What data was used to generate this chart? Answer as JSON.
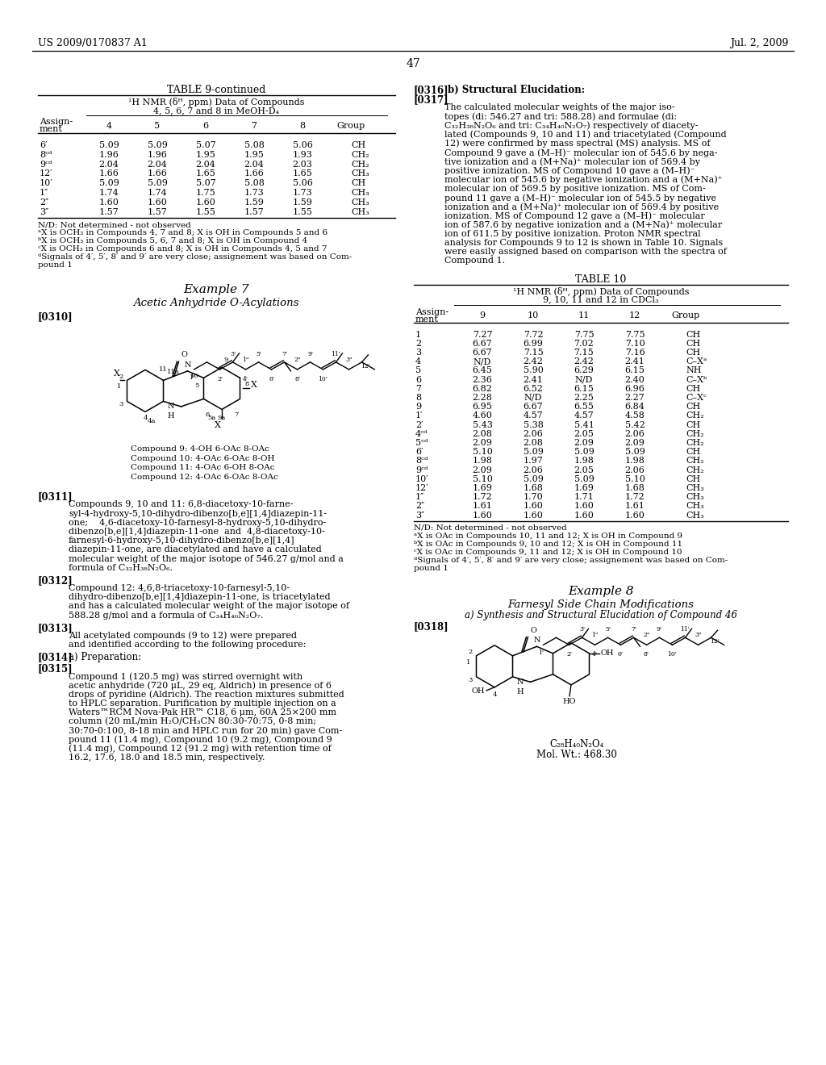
{
  "background_color": "#ffffff",
  "header_left": "US 2009/0170837 A1",
  "header_right": "Jul. 2, 2009",
  "page_number": "47",
  "table9_title": "TABLE 9-continued",
  "table9_subtitle1": "¹H NMR (δᴴ, ppm) Data of Compounds",
  "table9_subtitle2": "4, 5, 6, 7 and 8 in MeOH-D₄",
  "table9_col_headers": [
    "Assign-\nment",
    "4",
    "5",
    "6",
    "7",
    "8",
    "Group"
  ],
  "table9_rows": [
    [
      "6′",
      "5.09",
      "5.09",
      "5.07",
      "5.08",
      "5.06",
      "CH"
    ],
    [
      "8ᶜᵈ",
      "1.96",
      "1.96",
      "1.95",
      "1.95",
      "1.93",
      "CH₂"
    ],
    [
      "9ᶜᵈ",
      "2.04",
      "2.04",
      "2.04",
      "2.04",
      "2.03",
      "CH₂"
    ],
    [
      "12′",
      "1.66",
      "1.66",
      "1.65",
      "1.66",
      "1.65",
      "CH₃"
    ],
    [
      "10′",
      "5.09",
      "5.09",
      "5.07",
      "5.08",
      "5.06",
      "CH"
    ],
    [
      "1″",
      "1.74",
      "1.74",
      "1.75",
      "1.73",
      "1.73",
      "CH₃"
    ],
    [
      "2″",
      "1.60",
      "1.60",
      "1.60",
      "1.59",
      "1.59",
      "CH₃"
    ],
    [
      "3″",
      "1.57",
      "1.57",
      "1.55",
      "1.57",
      "1.55",
      "CH₃"
    ]
  ],
  "table9_footnotes": [
    "N/D: Not determined - not observed",
    "ᵃX is OCH₃ in Compounds 4, 7 and 8; X is OH in Compounds 5 and 6",
    "ᵇX is OCH₃ in Compounds 5, 6, 7 and 8; X is OH in Compound 4",
    "ᶜX is OCH₃ in Compounds 6 and 8; X is OH in Compounds 4, 5 and 7",
    "ᵈSignals of 4′, 5′, 8′ and 9′ are very close; assignement was based on Com-",
    "pound 1"
  ],
  "example7_title": "Example 7",
  "example7_subtitle": "Acetic Anhydride O-Acylations",
  "para0310": "[0310]",
  "compound_labels": [
    "Compound 9: 4-OH 6-OAc 8-OAc",
    "Compound 10: 4-OAc 6-OAc 8-OH",
    "Compound 11: 4-OAc 6-OH 8-OAc",
    "Compound 12: 4-OAc 6-OAc 8-OAc"
  ],
  "para0311_tag": "[0311]",
  "para0311_lines": [
    "Compounds 9, 10 and 11: 6,8-diacetoxy-10-farne-",
    "syl-4-hydroxy-5,10-dihydro-dibenzo[b,e][1,4]diazepin-11-",
    "one;    4,6-diacetoxy-10-farnesyl-8-hydroxy-5,10-dihydro-",
    "dibenzo[b,e][1,4]diazepin-11-one  and  4,8-diacetoxy-10-",
    "farnesyl-6-hydroxy-5,10-dihydro-dibenzo[b,e][1,4]",
    "diazepin-11-one, are diacetylated and have a calculated",
    "molecular weight of the major isotope of 546.27 g/mol and a",
    "formula of C₃₂H₃₈N₂O₆."
  ],
  "para0312_tag": "[0312]",
  "para0312_lines": [
    "Compound 12: 4,6,8-triacetoxy-10-farnesyl-5,10-",
    "dihydro-dibenzo[b,e][1,4]diazepin-11-one, is triacetylated",
    "and has a calculated molecular weight of the major isotope of",
    "588.28 g/mol and a formula of C₃₄H₄₀N₂O₇."
  ],
  "para0313_tag": "[0313]",
  "para0313_lines": [
    "All acetylated compounds (9 to 12) were prepared",
    "and identified according to the following procedure:"
  ],
  "para0314_tag": "[0314]",
  "para0314_text": "a) Preparation:",
  "para0315_tag": "[0315]",
  "para0315_lines": [
    "Compound 1 (120.5 mg) was stirred overnight with",
    "acetic anhydride (720 μL, 29 eq, Aldrich) in presence of 6",
    "drops of pyridine (Aldrich). The reaction mixtures submitted",
    "to HPLC separation. Purification by multiple injection on a",
    "Waters™RCM Nova-Pak HR™ C18, 6 μm, 60A 25×200 mm",
    "column (20 mL/min H₂O/CH₃CN 80:30-70:75, 0-8 min;",
    "30:70-0:100, 8-18 min and HPLC run for 20 min) gave Com-",
    "pound 11 (11.4 mg), Compound 10 (9.2 mg), Compound 9",
    "(11.4 mg), Compound 12 (91.2 mg) with retention time of",
    "16.2, 17.6, 18.0 and 18.5 min, respectively."
  ],
  "right_col_b316_tag": "[0316]",
  "right_col_b316_text": "b) Structural Elucidation:",
  "right_col_b317_tag": "[0317]",
  "right_col_b317_lines": [
    "The calculated molecular weights of the major iso-",
    "topes (di: 546.27 and tri: 588.28) and formulae (di:",
    "C₃₂H₃₈N₂O₆ and tri: C₃₄H₄₀N₂O₇) respectively of diacety-",
    "lated (Compounds 9, 10 and 11) and triacetylated (Compound",
    "12) were confirmed by mass spectral (MS) analysis. MS of",
    "Compound 9 gave a (M–H)⁻ molecular ion of 545.6 by nega-",
    "tive ionization and a (M+Na)⁺ molecular ion of 569.4 by",
    "positive ionization. MS of Compound 10 gave a (M–H)⁻",
    "molecular ion of 545.6 by negative ionization and a (M+Na)⁺",
    "molecular ion of 569.5 by positive ionization. MS of Com-",
    "pound 11 gave a (M–H)⁻ molecular ion of 545.5 by negative",
    "ionization and a (M+Na)⁺ molecular ion of 569.4 by positive",
    "ionization. MS of Compound 12 gave a (M–H)⁻ molecular",
    "ion of 587.6 by negative ionization and a (M+Na)⁺ molecular",
    "ion of 611.5 by positive ionization. Proton NMR spectral",
    "analysis for Compounds 9 to 12 is shown in Table 10. Signals",
    "were easily assigned based on comparison with the spectra of",
    "Compound 1."
  ],
  "table10_title": "TABLE 10",
  "table10_subtitle1": "¹H NMR (δᴴ, ppm) Data of Compounds",
  "table10_subtitle2": "9, 10, 11 and 12 in CDCl₃",
  "table10_col_headers": [
    "Assign-\nment",
    "9",
    "10",
    "11",
    "12",
    "Group"
  ],
  "table10_rows": [
    [
      "1",
      "7.27",
      "7.72",
      "7.75",
      "7.75",
      "CH"
    ],
    [
      "2",
      "6.67",
      "6.99",
      "7.02",
      "7.10",
      "CH"
    ],
    [
      "3",
      "6.67",
      "7.15",
      "7.15",
      "7.16",
      "CH"
    ],
    [
      "4",
      "N/D",
      "2.42",
      "2.42",
      "2.41",
      "C–Xᵃ"
    ],
    [
      "5",
      "6.45",
      "5.90",
      "6.29",
      "6.15",
      "NH"
    ],
    [
      "6",
      "2.36",
      "2.41",
      "N/D",
      "2.40",
      "C–Xᵇ"
    ],
    [
      "7",
      "6.82",
      "6.52",
      "6.15",
      "6.96",
      "CH"
    ],
    [
      "8",
      "2.28",
      "N/D",
      "2.25",
      "2.27",
      "C–Xᶜ"
    ],
    [
      "9",
      "6.95",
      "6.67",
      "6.55",
      "6.84",
      "CH"
    ],
    [
      "1′",
      "4.60",
      "4.57",
      "4.57",
      "4.58",
      "CH₂"
    ],
    [
      "2′",
      "5.43",
      "5.38",
      "5.41",
      "5.42",
      "CH"
    ],
    [
      "4ᶜᵈ",
      "2.08",
      "2.06",
      "2.05",
      "2.06",
      "CH₂"
    ],
    [
      "5ᶜᵈ",
      "2.09",
      "2.08",
      "2.09",
      "2.09",
      "CH₂"
    ],
    [
      "6′",
      "5.10",
      "5.09",
      "5.09",
      "5.09",
      "CH"
    ],
    [
      "8ᶜᵈ",
      "1.98",
      "1.97",
      "1.98",
      "1.98",
      "CH₂"
    ],
    [
      "9ᶜᵈ",
      "2.09",
      "2.06",
      "2.05",
      "2.06",
      "CH₂"
    ],
    [
      "10′",
      "5.10",
      "5.09",
      "5.09",
      "5.10",
      "CH"
    ],
    [
      "12′",
      "1.69",
      "1.68",
      "1.69",
      "1.68",
      "CH₃"
    ],
    [
      "1″",
      "1.72",
      "1.70",
      "1.71",
      "1.72",
      "CH₃"
    ],
    [
      "2″",
      "1.61",
      "1.60",
      "1.60",
      "1.61",
      "CH₃"
    ],
    [
      "3″",
      "1.60",
      "1.60",
      "1.60",
      "1.60",
      "CH₃"
    ]
  ],
  "table10_footnotes": [
    "N/D: Not determined - not observed",
    "ᵃX is OAc in Compounds 10, 11 and 12; X is OH in Compound 9",
    "ᵇX is OAc in Compounds 9, 10 and 12; X is OH in Compound 11",
    "ᶜX is OAc in Compounds 9, 11 and 12; X is OH in Compound 10",
    "ᵈSignals of 4′, 5′, 8′ and 9′ are very close; assignement was based on Com-",
    "pound 1"
  ],
  "example8_title": "Example 8",
  "example8_subtitle": "Farnesyl Side Chain Modifications",
  "example8_a": "a) Synthesis and Structural Elucidation of Compound 46",
  "para0318_tag": "[0318]",
  "compound46_formula": "C₂₈H₄₀N₂O₄",
  "compound46_mw": "Mol. Wt.: 468.30"
}
